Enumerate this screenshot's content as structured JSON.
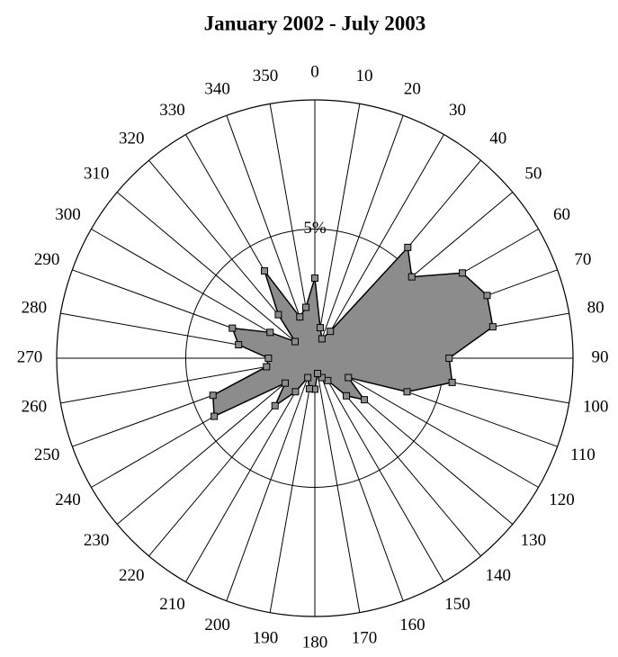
{
  "chart_data": {
    "type": "radar",
    "title": "January 2002 - July 2003",
    "categories": [
      "0",
      "10",
      "20",
      "30",
      "40",
      "50",
      "60",
      "70",
      "80",
      "90",
      "100",
      "110",
      "120",
      "130",
      "140",
      "150",
      "160",
      "170",
      "180",
      "190",
      "200",
      "210",
      "220",
      "230",
      "240",
      "250",
      "260",
      "270",
      "280",
      "290",
      "300",
      "310",
      "320",
      "330",
      "340",
      "350"
    ],
    "values": [
      3.1,
      1.2,
      0.8,
      1.2,
      5.6,
      4.9,
      6.6,
      7.1,
      7.0,
      5.2,
      5.4,
      3.8,
      1.5,
      2.5,
      1.9,
      1.0,
      0.8,
      0.6,
      1.2,
      1.2,
      0.8,
      1.5,
      2.4,
      1.5,
      4.5,
      4.2,
      1.9,
      1.8,
      3.0,
      3.4,
      2.0,
      1.0,
      2.2,
      3.9,
      1.7,
      2.0
    ],
    "color": "#8c8c8c",
    "rlim": [
      0,
      10
    ],
    "rticks": [
      {
        "value": 5,
        "label": "5%"
      }
    ],
    "grid": true
  }
}
